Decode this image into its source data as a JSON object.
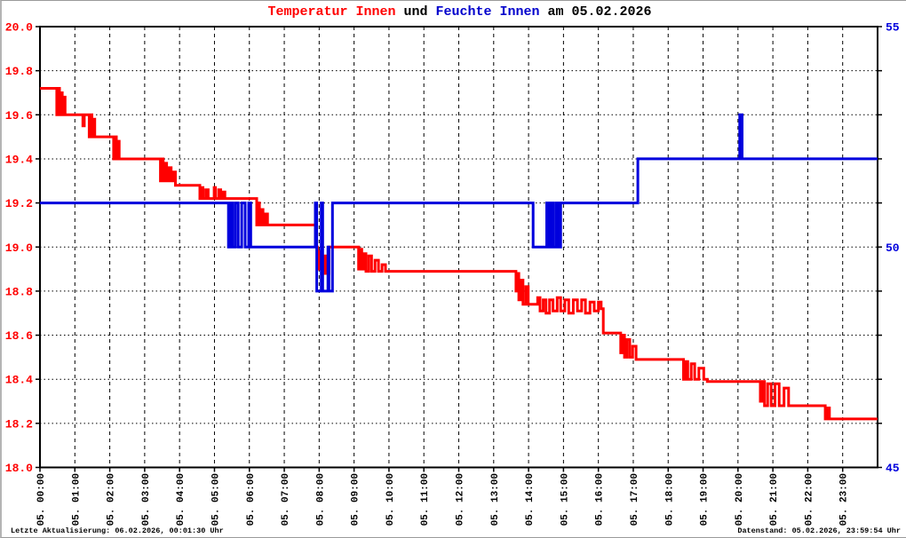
{
  "title": {
    "part1": "Temperatur Innen",
    "part2": " und ",
    "part3": "Feuchte Innen",
    "part4": " am 05.02.2026"
  },
  "footer": {
    "left": "Letzte Aktualisierung: 06.02.2026, 00:01:30 Uhr",
    "right": "Datenstand: 05.02.2026, 23:59:54 Uhr"
  },
  "colors": {
    "temperature": "#ff0000",
    "humidity": "#0000dd",
    "grid": "#000000",
    "axis": "#000000",
    "background": "#ffffff"
  },
  "chart_data": {
    "type": "line",
    "title": "Temperatur Innen und Feuchte Innen am 05.02.2026",
    "grid": true,
    "interpolation": "step-after",
    "x_axis": {
      "unit": "hours",
      "range": [
        0,
        24
      ],
      "tick_hours": [
        0,
        1,
        2,
        3,
        4,
        5,
        6,
        7,
        8,
        9,
        10,
        11,
        12,
        13,
        14,
        15,
        16,
        17,
        18,
        19,
        20,
        21,
        22,
        23
      ],
      "labels": [
        "05. 00:00",
        "05. 01:00",
        "05. 02:00",
        "05. 03:00",
        "05. 04:00",
        "05. 05:00",
        "05. 06:00",
        "05. 07:00",
        "05. 08:00",
        "05. 09:00",
        "05. 10:00",
        "05. 11:00",
        "05. 12:00",
        "05. 13:00",
        "05. 14:00",
        "05. 15:00",
        "05. 16:00",
        "05. 17:00",
        "05. 18:00",
        "05. 19:00",
        "05. 20:00",
        "05. 21:00",
        "05. 22:00",
        "05. 23:00"
      ]
    },
    "y_left": {
      "name": "Temperatur Innen",
      "color": "#ff0000",
      "min": 18.0,
      "max": 20.0,
      "tick_values": [
        20.0,
        19.8,
        19.6,
        19.4,
        19.2,
        19.0,
        18.8,
        18.6,
        18.4,
        18.2,
        18.0
      ],
      "tick_labels": [
        "20.0",
        "19.8",
        "19.6",
        "19.4",
        "19.2",
        "19.0",
        "18.8",
        "18.6",
        "18.4",
        "18.2",
        "18.0"
      ]
    },
    "y_right": {
      "name": "Feuchte Innen",
      "color": "#0000dd",
      "min": 45,
      "max": 55,
      "label_values": [
        55,
        50,
        45
      ],
      "tick_labels": [
        "55",
        "50",
        "45"
      ]
    },
    "series": [
      {
        "name": "Temperatur Innen",
        "color": "#ff0000",
        "axis": "left",
        "points": [
          [
            0.0,
            19.72
          ],
          [
            0.45,
            19.72
          ],
          [
            0.48,
            19.6
          ],
          [
            0.52,
            19.72
          ],
          [
            0.56,
            19.6
          ],
          [
            0.6,
            19.7
          ],
          [
            0.64,
            19.6
          ],
          [
            0.68,
            19.68
          ],
          [
            0.72,
            19.6
          ],
          [
            1.2,
            19.6
          ],
          [
            1.23,
            19.55
          ],
          [
            1.27,
            19.6
          ],
          [
            1.38,
            19.6
          ],
          [
            1.41,
            19.5
          ],
          [
            1.45,
            19.6
          ],
          [
            1.49,
            19.5
          ],
          [
            1.53,
            19.58
          ],
          [
            1.57,
            19.5
          ],
          [
            2.08,
            19.5
          ],
          [
            2.11,
            19.4
          ],
          [
            2.15,
            19.5
          ],
          [
            2.19,
            19.4
          ],
          [
            2.23,
            19.48
          ],
          [
            2.27,
            19.4
          ],
          [
            3.42,
            19.4
          ],
          [
            3.45,
            19.3
          ],
          [
            3.49,
            19.4
          ],
          [
            3.53,
            19.3
          ],
          [
            3.58,
            19.38
          ],
          [
            3.63,
            19.3
          ],
          [
            3.7,
            19.36
          ],
          [
            3.76,
            19.3
          ],
          [
            3.82,
            19.34
          ],
          [
            3.88,
            19.28
          ],
          [
            4.55,
            19.28
          ],
          [
            4.58,
            19.22
          ],
          [
            4.62,
            19.27
          ],
          [
            4.67,
            19.22
          ],
          [
            4.75,
            19.26
          ],
          [
            4.82,
            19.22
          ],
          [
            4.99,
            19.27
          ],
          [
            5.03,
            19.22
          ],
          [
            5.12,
            19.26
          ],
          [
            5.18,
            19.22
          ],
          [
            5.25,
            19.25
          ],
          [
            5.3,
            19.22
          ],
          [
            6.18,
            19.22
          ],
          [
            6.21,
            19.1
          ],
          [
            6.25,
            19.2
          ],
          [
            6.29,
            19.1
          ],
          [
            6.34,
            19.17
          ],
          [
            6.39,
            19.1
          ],
          [
            6.46,
            19.15
          ],
          [
            6.52,
            19.1
          ],
          [
            7.88,
            19.1
          ],
          [
            7.91,
            19.0
          ],
          [
            7.95,
            18.9
          ],
          [
            7.99,
            18.98
          ],
          [
            8.03,
            18.9
          ],
          [
            8.1,
            18.88
          ],
          [
            8.15,
            18.96
          ],
          [
            8.2,
            18.88
          ],
          [
            8.28,
            19.0
          ],
          [
            9.1,
            19.0
          ],
          [
            9.13,
            18.9
          ],
          [
            9.17,
            18.99
          ],
          [
            9.22,
            18.9
          ],
          [
            9.28,
            18.97
          ],
          [
            9.34,
            18.89
          ],
          [
            9.42,
            18.96
          ],
          [
            9.5,
            18.89
          ],
          [
            9.6,
            18.94
          ],
          [
            9.7,
            18.89
          ],
          [
            9.8,
            18.92
          ],
          [
            9.9,
            18.89
          ],
          [
            13.6,
            18.89
          ],
          [
            13.64,
            18.8
          ],
          [
            13.68,
            18.88
          ],
          [
            13.72,
            18.76
          ],
          [
            13.78,
            18.85
          ],
          [
            13.84,
            18.74
          ],
          [
            13.92,
            18.82
          ],
          [
            13.99,
            18.74
          ],
          [
            14.2,
            18.74
          ],
          [
            14.26,
            18.77
          ],
          [
            14.33,
            18.71
          ],
          [
            14.42,
            18.76
          ],
          [
            14.5,
            18.7
          ],
          [
            14.6,
            18.76
          ],
          [
            14.7,
            18.71
          ],
          [
            14.82,
            18.77
          ],
          [
            14.92,
            18.71
          ],
          [
            15.04,
            18.76
          ],
          [
            15.15,
            18.7
          ],
          [
            15.28,
            18.76
          ],
          [
            15.4,
            18.71
          ],
          [
            15.52,
            18.76
          ],
          [
            15.63,
            18.7
          ],
          [
            15.76,
            18.75
          ],
          [
            15.88,
            18.71
          ],
          [
            16.0,
            18.75
          ],
          [
            16.08,
            18.72
          ],
          [
            16.14,
            18.61
          ],
          [
            16.6,
            18.61
          ],
          [
            16.64,
            18.52
          ],
          [
            16.69,
            18.6
          ],
          [
            16.75,
            18.5
          ],
          [
            16.82,
            18.58
          ],
          [
            16.9,
            18.5
          ],
          [
            16.98,
            18.55
          ],
          [
            17.08,
            18.49
          ],
          [
            18.4,
            18.49
          ],
          [
            18.44,
            18.4
          ],
          [
            18.49,
            18.48
          ],
          [
            18.56,
            18.4
          ],
          [
            18.66,
            18.47
          ],
          [
            18.76,
            18.4
          ],
          [
            18.88,
            18.45
          ],
          [
            19.02,
            18.4
          ],
          [
            19.12,
            18.39
          ],
          [
            20.6,
            18.39
          ],
          [
            20.64,
            18.3
          ],
          [
            20.69,
            18.39
          ],
          [
            20.76,
            18.28
          ],
          [
            20.85,
            18.38
          ],
          [
            20.95,
            18.28
          ],
          [
            21.06,
            18.38
          ],
          [
            21.18,
            18.28
          ],
          [
            21.32,
            18.36
          ],
          [
            21.45,
            18.28
          ],
          [
            22.45,
            18.28
          ],
          [
            22.5,
            18.22
          ],
          [
            22.55,
            18.27
          ],
          [
            22.62,
            18.22
          ],
          [
            24.0,
            18.22
          ]
        ]
      },
      {
        "name": "Feuchte Innen",
        "color": "#0000dd",
        "axis": "right",
        "points": [
          [
            0.0,
            51
          ],
          [
            5.35,
            51
          ],
          [
            5.4,
            50
          ],
          [
            5.46,
            51
          ],
          [
            5.52,
            50
          ],
          [
            5.6,
            51
          ],
          [
            5.68,
            50
          ],
          [
            5.78,
            51
          ],
          [
            5.88,
            50
          ],
          [
            5.98,
            51
          ],
          [
            6.04,
            50
          ],
          [
            6.15,
            50
          ],
          [
            7.86,
            50
          ],
          [
            7.89,
            51
          ],
          [
            7.93,
            49
          ],
          [
            8.02,
            49
          ],
          [
            8.06,
            51
          ],
          [
            8.1,
            49
          ],
          [
            8.2,
            49
          ],
          [
            8.25,
            50
          ],
          [
            8.28,
            49
          ],
          [
            8.33,
            49
          ],
          [
            8.38,
            51
          ],
          [
            14.1,
            51
          ],
          [
            14.13,
            50
          ],
          [
            14.48,
            50
          ],
          [
            14.52,
            51
          ],
          [
            14.57,
            50
          ],
          [
            14.63,
            51
          ],
          [
            14.7,
            50
          ],
          [
            14.78,
            51
          ],
          [
            14.85,
            50
          ],
          [
            14.92,
            51
          ],
          [
            17.1,
            51
          ],
          [
            17.13,
            52
          ],
          [
            20.02,
            52
          ],
          [
            20.05,
            53
          ],
          [
            20.09,
            53
          ],
          [
            20.12,
            52
          ],
          [
            24.0,
            52
          ]
        ]
      }
    ]
  }
}
